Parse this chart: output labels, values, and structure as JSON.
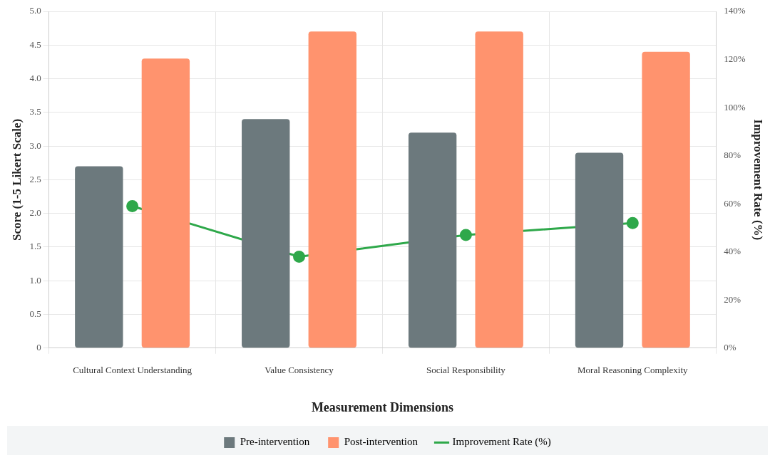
{
  "chart_data": {
    "type": "bar",
    "xlabel": "Measurement Dimensions",
    "ylabel": "Score (1-5 Likert Scale)",
    "y2label": "Improvement Rate (%)",
    "categories": [
      "Cultural Context Understanding",
      "Value Consistency",
      "Social Responsibility",
      "Moral Reasoning Complexity"
    ],
    "series": [
      {
        "name": "Pre-intervention",
        "color": "#6c797d",
        "values": [
          2.7,
          3.4,
          3.2,
          2.9
        ]
      },
      {
        "name": "Post-intervention",
        "color": "#ff936e",
        "values": [
          4.3,
          4.7,
          4.7,
          4.4
        ]
      },
      {
        "name": "Improvement Rate (%)",
        "type": "line",
        "axis": "y2",
        "color": "#2ea84a",
        "values": [
          59,
          38,
          47,
          52
        ]
      }
    ],
    "ylim": [
      0,
      5
    ],
    "yticks": [
      0,
      {
        "value": 0.5,
        "label": "0.5"
      },
      {
        "value": 1,
        "label": "1.0"
      },
      {
        "value": 1.5,
        "label": "1.5"
      },
      {
        "value": 2,
        "label": "2.0"
      },
      {
        "value": 2.5,
        "label": "2.5"
      },
      {
        "value": 3,
        "label": "3.0"
      },
      {
        "value": 3.5,
        "label": "3.5"
      },
      {
        "value": 4,
        "label": "4.0"
      },
      {
        "value": 4.5,
        "label": "4.5"
      },
      {
        "value": 5,
        "label": "5.0"
      }
    ],
    "y2lim": [
      0,
      140
    ],
    "y2ticks": [
      {
        "value": 0,
        "label": "0%"
      },
      {
        "value": 20,
        "label": "20%"
      },
      {
        "value": 40,
        "label": "40%"
      },
      {
        "value": 60,
        "label": "60%"
      },
      {
        "value": 80,
        "label": "80%"
      },
      {
        "value": 100,
        "label": "100%"
      },
      {
        "value": 120,
        "label": "120%"
      },
      {
        "value": 140,
        "label": "140%"
      }
    ],
    "grid": true,
    "legend": "bottom",
    "marker": "circle",
    "line_style": "solid"
  }
}
